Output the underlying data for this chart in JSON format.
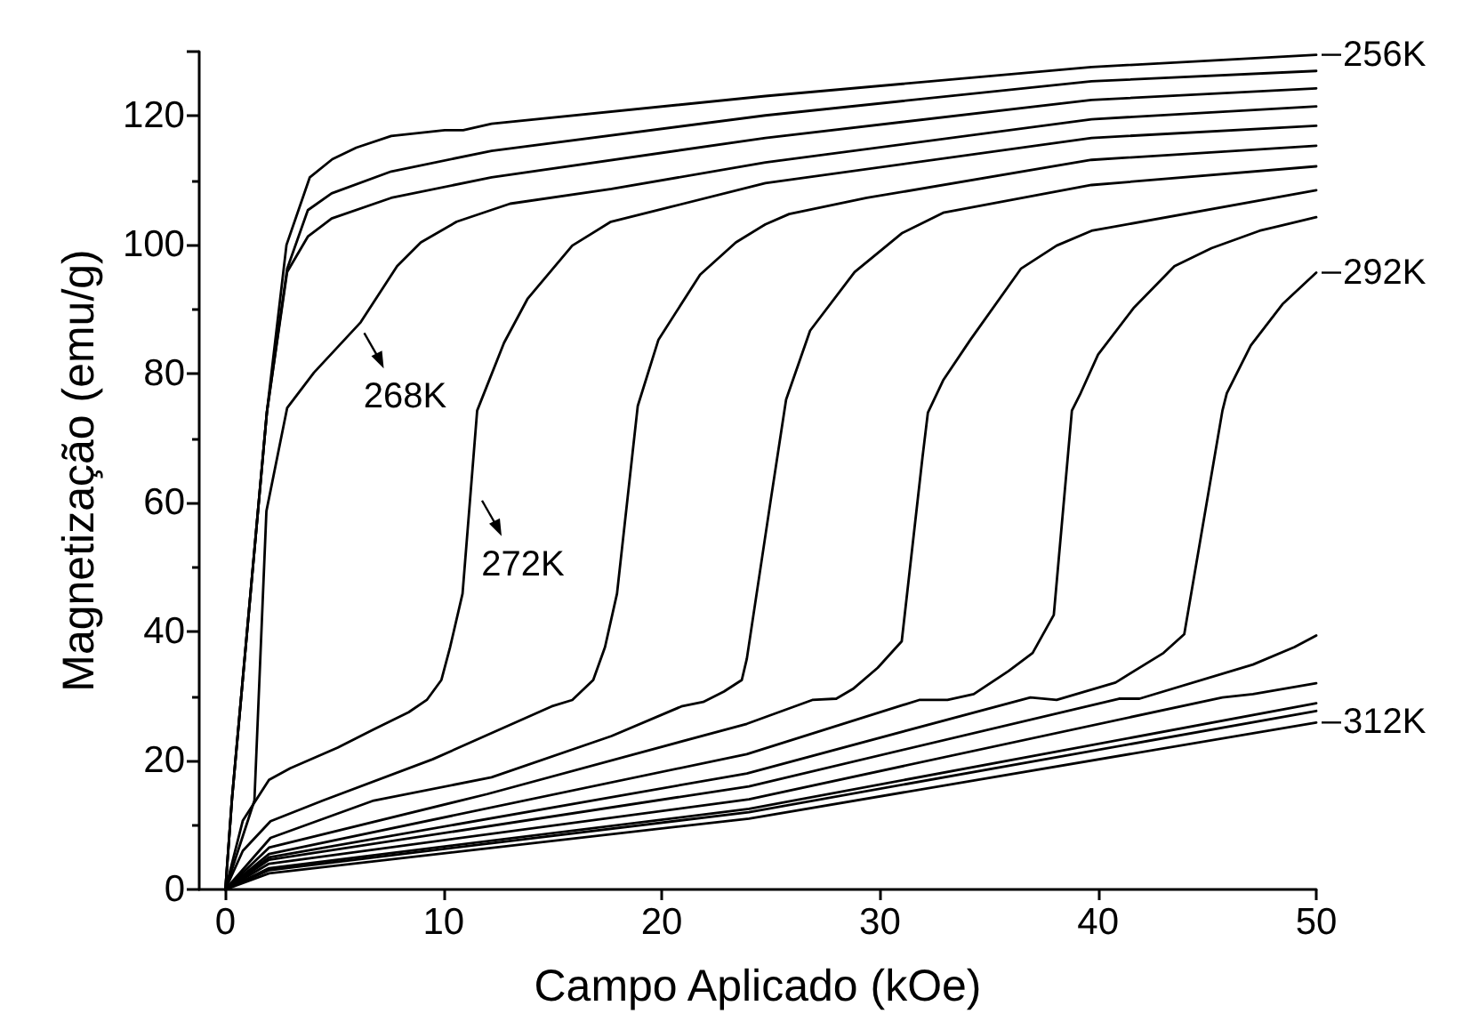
{
  "chart_data": {
    "type": "line",
    "xlabel": "Campo Aplicado (kOe)",
    "ylabel": "Magnetização (emu/g)",
    "xlim": [
      -1.2,
      50
    ],
    "ylim": [
      0,
      130
    ],
    "xticks": [
      0,
      10,
      20,
      30,
      40,
      50
    ],
    "yticks": [
      0,
      20,
      40,
      60,
      80,
      100,
      120
    ],
    "grid": false,
    "marker": "none",
    "line_style": "solid",
    "series": [
      {
        "color": "#000000",
        "x": [
          0,
          0.3,
          1.9,
          2.8,
          3.87,
          4.9,
          6.0,
          7.6,
          10.05,
          10.9,
          12.2,
          24.75,
          39.7,
          50
        ],
        "values": [
          0,
          14,
          74,
          100,
          110.5,
          113.3,
          115.1,
          116.9,
          117.8,
          117.8,
          118.8,
          123.1,
          127.6,
          129.5
        ]
      },
      {
        "color": "#000000",
        "x": [
          0,
          0.3,
          1.9,
          2.83,
          3.78,
          4.87,
          7.6,
          12.2,
          24.75,
          39.7,
          50
        ],
        "values": [
          0,
          14,
          74,
          96.3,
          105.4,
          108,
          111.4,
          114.6,
          120.1,
          125.4,
          127
        ]
      },
      {
        "color": "#000000",
        "x": [
          0,
          0.3,
          1.9,
          2.83,
          3.78,
          4.87,
          7.6,
          12.2,
          24.75,
          39.7,
          50
        ],
        "values": [
          0,
          14,
          74,
          95.8,
          101.3,
          104.1,
          107.3,
          110.5,
          116.6,
          122.5,
          124.3
        ]
      },
      {
        "color": "#000000",
        "x": [
          0,
          1.33,
          1.88,
          2.83,
          4.06,
          6.2,
          7.87,
          8.96,
          10.6,
          13.05,
          17.7,
          24.75,
          39.7,
          50
        ],
        "values": [
          0,
          13.8,
          58.7,
          74.7,
          80.2,
          88,
          96.7,
          100.4,
          103.6,
          106.4,
          108.7,
          112.8,
          119.5,
          121.5
        ]
      },
      {
        "color": "#000000",
        "x": [
          0,
          0.8,
          2.0,
          2.97,
          5.15,
          6.78,
          8.4,
          9.23,
          9.9,
          10.3,
          10.87,
          11.54,
          12.77,
          13.86,
          15.9,
          17.67,
          20.4,
          24.75,
          39.7,
          50
        ],
        "values": [
          0,
          10.7,
          17,
          18.8,
          22,
          24.8,
          27.5,
          29.4,
          32.5,
          37.6,
          45.9,
          74.3,
          84.8,
          91.7,
          99.9,
          103.6,
          105.9,
          109.6,
          116.6,
          118.5
        ]
      },
      {
        "color": "#000000",
        "x": [
          0,
          0.8,
          2.07,
          4.47,
          9.5,
          14.95,
          15.9,
          16.86,
          17.4,
          17.95,
          18.9,
          19.85,
          21.76,
          23.4,
          24.75,
          25.84,
          29.4,
          39.7,
          50
        ],
        "values": [
          0,
          6,
          10.6,
          13.8,
          20.2,
          28.4,
          29.4,
          32.5,
          37.6,
          45.9,
          75,
          85.3,
          95.4,
          100.4,
          103.2,
          104.8,
          107.3,
          113.2,
          115.4
        ]
      },
      {
        "color": "#000000",
        "x": [
          0,
          2.07,
          6.8,
          12.2,
          17.7,
          20.9,
          21.9,
          22.85,
          23.67,
          23.9,
          25.0,
          25.7,
          26.8,
          28.84,
          31.0,
          32.9,
          39.7,
          50
        ],
        "values": [
          0,
          8,
          13.8,
          17.4,
          23.8,
          28.4,
          29.1,
          30.7,
          32.5,
          35.8,
          60.5,
          76,
          86.7,
          95.8,
          101.8,
          105,
          109.3,
          112.2
        ]
      },
      {
        "color": "#000000",
        "x": [
          0,
          2.0,
          12,
          23.9,
          26.9,
          28.0,
          28.8,
          29.9,
          31.0,
          31.95,
          32.2,
          32.9,
          34.15,
          36.46,
          38.1,
          39.7,
          50
        ],
        "values": [
          0,
          6.5,
          14.8,
          25.7,
          29.4,
          29.6,
          31.2,
          34.4,
          38.5,
          67,
          74,
          79,
          85.3,
          96.3,
          99.9,
          102.2,
          108.5
        ]
      },
      {
        "color": "#000000",
        "x": [
          0,
          2.0,
          23.9,
          31.8,
          33.1,
          34.3,
          35.9,
          37.0,
          37.97,
          38.8,
          39.2,
          40.0,
          41.65,
          43.5,
          45.2,
          47.4,
          50
        ],
        "values": [
          0,
          5.5,
          21,
          29.4,
          29.4,
          30.3,
          33.9,
          36.7,
          42.6,
          74.3,
          77,
          83,
          90.3,
          96.7,
          99.5,
          102.2,
          104.3
        ]
      },
      {
        "color": "#000000",
        "x": [
          0,
          2.0,
          23.9,
          36.9,
          38.1,
          40.8,
          43.0,
          43.95,
          45.7,
          45.9,
          47.0,
          48.45,
          50
        ],
        "values": [
          0,
          5,
          18,
          29.8,
          29.4,
          32.1,
          36.7,
          39.6,
          74.3,
          77,
          84.4,
          90.8,
          95.7
        ]
      },
      {
        "color": "#000000",
        "x": [
          0,
          2.0,
          24,
          40.96,
          41.9,
          47.1,
          49.0,
          50
        ],
        "values": [
          0,
          4.6,
          16,
          29.6,
          29.6,
          34.9,
          37.6,
          39.4
        ]
      },
      {
        "color": "#000000",
        "x": [
          0,
          2.0,
          24,
          45.7,
          47.1,
          50
        ],
        "values": [
          0,
          4,
          14,
          29.8,
          30.3,
          32
        ]
      },
      {
        "color": "#000000",
        "x": [
          0,
          2.0,
          24,
          50
        ],
        "values": [
          0,
          3.3,
          12.5,
          28.9
        ]
      },
      {
        "color": "#000000",
        "x": [
          0,
          2.0,
          24,
          50
        ],
        "values": [
          0,
          3,
          12,
          27.7
        ]
      },
      {
        "color": "#000000",
        "x": [
          0,
          2.0,
          24,
          50
        ],
        "values": [
          0,
          2.5,
          11,
          25.9
        ]
      }
    ],
    "annotations": [
      {
        "text": "256K",
        "x": 50,
        "y": 129.5
      },
      {
        "text": "292K",
        "x": 50,
        "y": 95.7
      },
      {
        "text": "312K",
        "x": 50,
        "y": 25.9
      },
      {
        "text": "268K",
        "x": 6.2,
        "y": 88
      },
      {
        "text": "272K",
        "x": 11.6,
        "y": 62
      }
    ]
  }
}
